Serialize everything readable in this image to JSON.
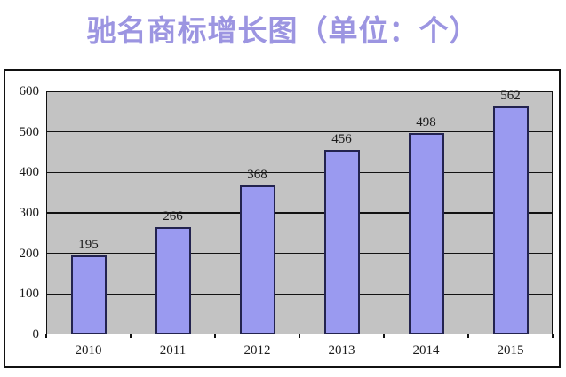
{
  "title": "驰名商标增长图（单位：个）",
  "colors": {
    "title_text": "#9c95e1",
    "bar_fill": "#9a9af0",
    "bar_border": "#23234f",
    "plot_background": "#c3c3c3",
    "gridline": "#111111",
    "frame_border": "#111111",
    "axis_text": "#1a1a1a",
    "page_background": "#ffffff"
  },
  "chart_data": {
    "type": "bar",
    "title": "驰名商标增长图（单位：个）",
    "categories": [
      "2010",
      "2011",
      "2012",
      "2013",
      "2014",
      "2015"
    ],
    "values": [
      195,
      266,
      368,
      456,
      498,
      562
    ],
    "data_labels": [
      "195",
      "266",
      "368",
      "456",
      "498",
      "562"
    ],
    "xlabel": "",
    "ylabel": "",
    "ylim": [
      0,
      600
    ],
    "yticks": [
      0,
      100,
      200,
      300,
      400,
      500,
      600
    ],
    "grid": true,
    "gridlines": "horizontal",
    "legend_position": "none",
    "plot_background": "gray"
  }
}
